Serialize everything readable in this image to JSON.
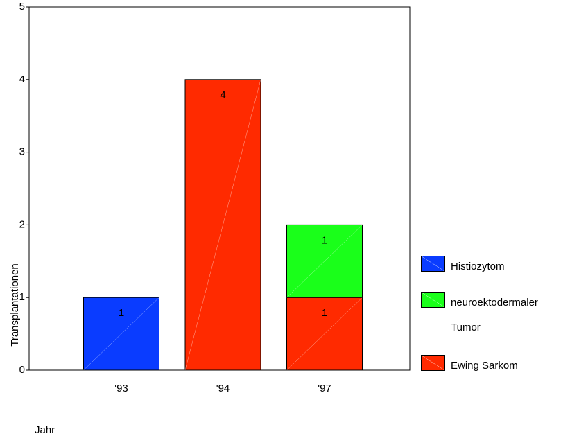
{
  "chart_data": {
    "type": "stacked_bar",
    "categories": [
      "'93",
      "'94",
      "'97"
    ],
    "series": [
      {
        "name": "Histiozytom",
        "color": "#0a3cff",
        "values": [
          1,
          null,
          null
        ]
      },
      {
        "name": "neuroektodermaler Tumor",
        "color": "#1aff1a",
        "values": [
          null,
          null,
          1
        ]
      },
      {
        "name": "Ewing Sarkom",
        "color": "#ff2a00",
        "values": [
          null,
          4,
          1
        ]
      }
    ],
    "ylim": [
      0,
      5
    ],
    "yticks": [
      0,
      1,
      2,
      3,
      4,
      5
    ],
    "y_label": "Transplantationen",
    "x_label": "Jahr",
    "legend": "right"
  }
}
